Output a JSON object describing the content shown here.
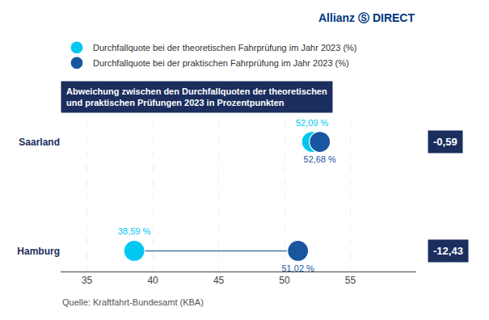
{
  "chart_data": {
    "type": "dumbbell",
    "subtitle": "Abweichung zwischen den Durchfallquoten der theoretischen\nund praktischen Prüfungen 2023 in Prozentpunkten",
    "categories": [
      "Saarland",
      "Hamburg"
    ],
    "series": [
      {
        "name": "Durchfallquote bei der theoretischen Fahrprüfung im Jahr 2023 (%)",
        "color": "#00C8F0",
        "values": [
          52.09,
          38.59
        ],
        "value_labels": [
          "52,09 %",
          "38,59 %"
        ]
      },
      {
        "name": "Durchfallquote bei der praktischen Fahrprüfung im Jahr 2023 (%)",
        "color": "#1A56A0",
        "values": [
          52.68,
          51.02
        ],
        "value_labels": [
          "52,68 %",
          "51,02 %"
        ]
      }
    ],
    "diff_labels": [
      "-0,59",
      "-12,43"
    ],
    "annotations": [
      "Allianz Ⓢ DIRECT"
    ],
    "source": "Quelle: Kraftfahrt-Bundesamt (KBA)",
    "xlim": [
      33,
      60
    ],
    "xticks": [
      35,
      40,
      45,
      50,
      55
    ],
    "grid": true,
    "legend": "top left",
    "data_labels": true
  }
}
